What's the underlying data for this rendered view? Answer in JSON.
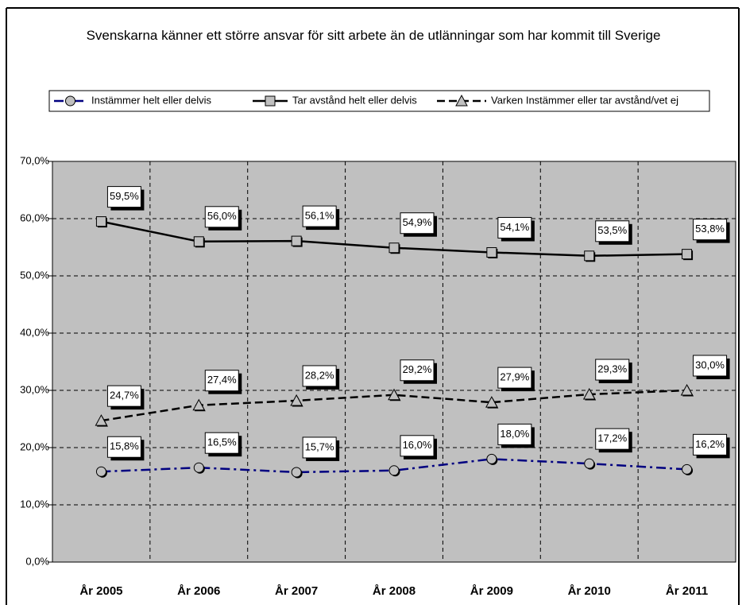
{
  "chart_data": {
    "type": "line",
    "title": "Svenskarna känner ett större ansvar för sitt arbete än de utlänningar som har kommit till Sverige",
    "categories": [
      "År 2005",
      "År 2006",
      "År 2007",
      "År 2008",
      "År 2009",
      "År 2010",
      "År 2011"
    ],
    "series": [
      {
        "name": "Instämmer helt eller delvis",
        "color": "#000080",
        "dash": "dashdot",
        "marker": "circle",
        "values": [
          15.8,
          16.5,
          15.7,
          16.0,
          18.0,
          17.2,
          16.2
        ],
        "value_labels": [
          "15,8%",
          "16,5%",
          "15,7%",
          "16,0%",
          "18,0%",
          "17,2%",
          "16,2%"
        ]
      },
      {
        "name": "Tar avstånd helt eller delvis",
        "color": "#000000",
        "dash": "solid",
        "marker": "square",
        "values": [
          59.5,
          56.0,
          56.1,
          54.9,
          54.1,
          53.5,
          53.8
        ],
        "value_labels": [
          "59,5%",
          "56,0%",
          "56,1%",
          "54,9%",
          "54,1%",
          "53,5%",
          "53,8%"
        ]
      },
      {
        "name": "Varken Instämmer eller tar avstånd/vet ej",
        "color": "#000000",
        "dash": "dashed",
        "marker": "triangle",
        "values": [
          24.7,
          27.4,
          28.2,
          29.2,
          27.9,
          29.3,
          30.0
        ],
        "value_labels": [
          "24,7%",
          "27,4%",
          "28,2%",
          "29,2%",
          "27,9%",
          "29,3%",
          "30,0%"
        ]
      }
    ],
    "ylim": [
      0,
      70
    ],
    "yticks": [
      {
        "value": 0,
        "label": "0,0%"
      },
      {
        "value": 10,
        "label": "10,0%"
      },
      {
        "value": 20,
        "label": "20,0%"
      },
      {
        "value": 30,
        "label": "30,0%"
      },
      {
        "value": 40,
        "label": "40,0%"
      },
      {
        "value": 50,
        "label": "50,0%"
      },
      {
        "value": 60,
        "label": "60,0%"
      },
      {
        "value": 70,
        "label": "70,0%"
      }
    ],
    "grid": true,
    "legend_position": "top"
  }
}
